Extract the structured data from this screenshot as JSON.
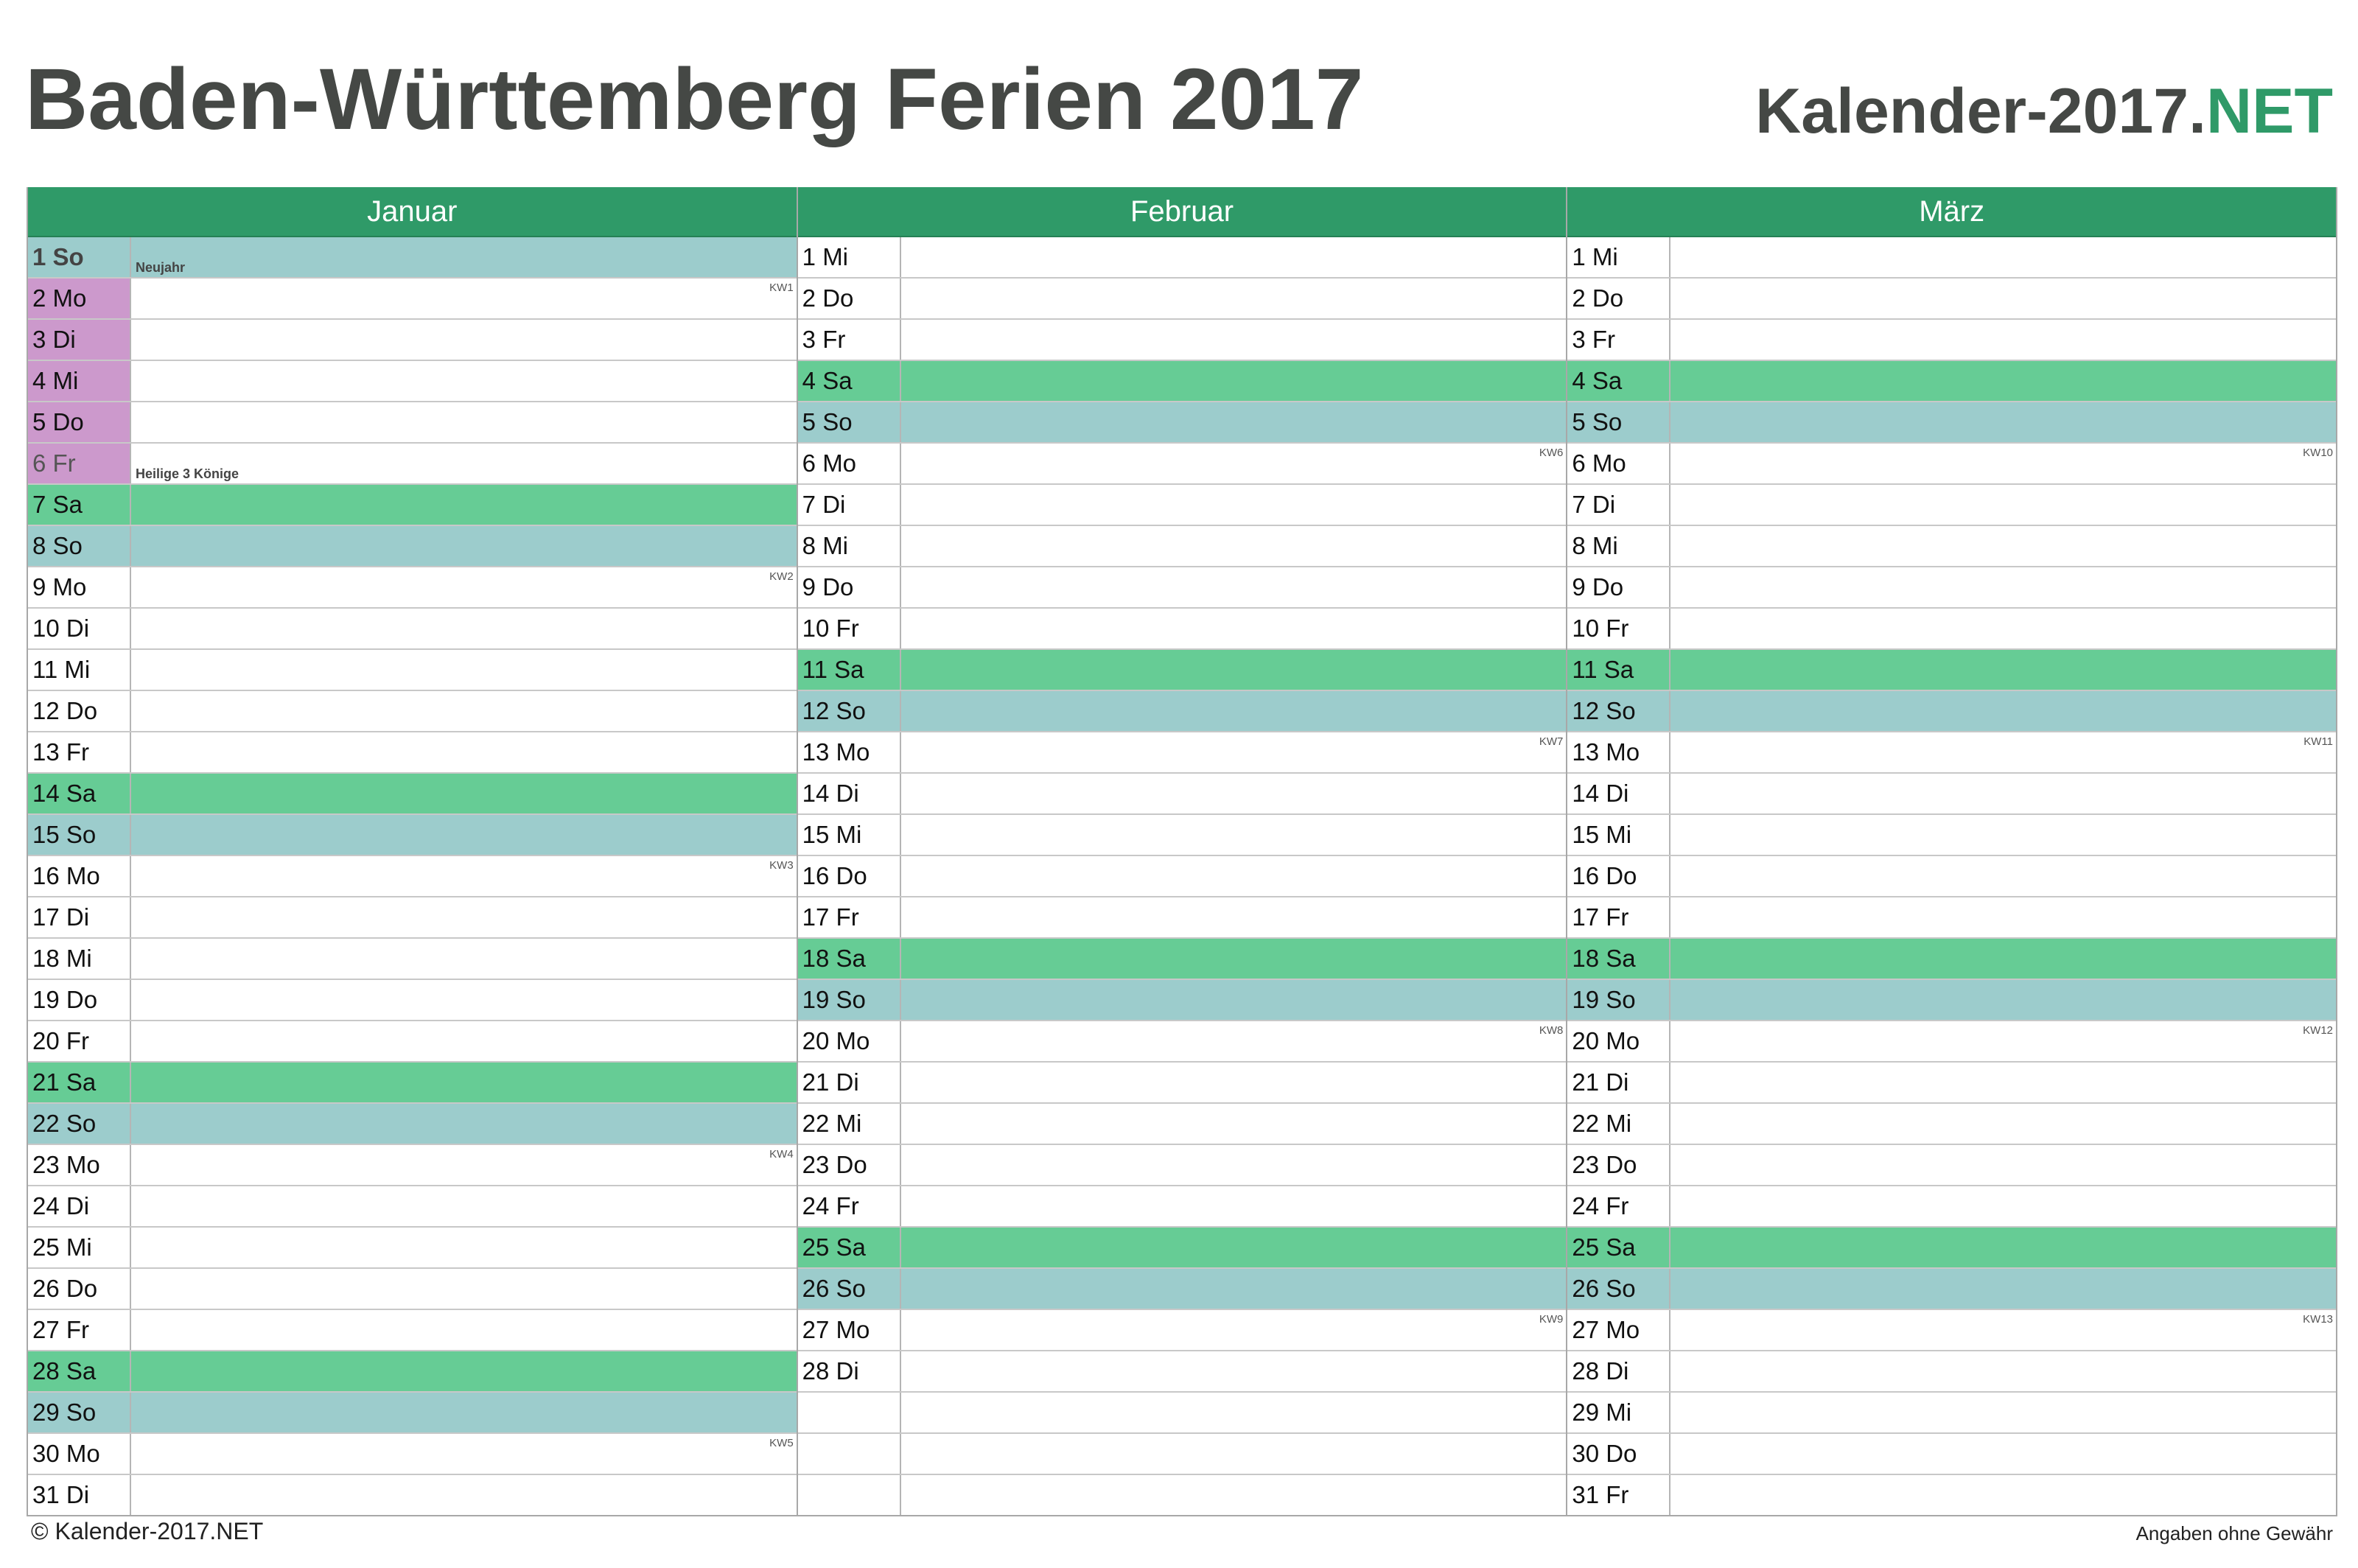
{
  "header": {
    "title": "Baden-Württemberg Ferien 2017",
    "brand_main": "Kalender-2017.",
    "brand_accent": "NET"
  },
  "colors": {
    "header_green": "#2f9a68",
    "saturday": "#66cc95",
    "sunday": "#9ccccc",
    "school_holiday": "#cc99cc",
    "title_gray": "#454845"
  },
  "months": [
    {
      "name": "Januar",
      "days": [
        {
          "label": "1 So",
          "type": "so",
          "note": "Neujahr",
          "pub": true
        },
        {
          "label": "2 Mo",
          "kw": "KW1",
          "holiday": true
        },
        {
          "label": "3 Di",
          "holiday": true
        },
        {
          "label": "4 Mi",
          "holiday": true
        },
        {
          "label": "5 Do",
          "holiday": true
        },
        {
          "label": "6 Fr",
          "holiday": true,
          "note": "Heilige 3 Könige",
          "named": true
        },
        {
          "label": "7 Sa",
          "type": "sa"
        },
        {
          "label": "8 So",
          "type": "so"
        },
        {
          "label": "9 Mo",
          "kw": "KW2"
        },
        {
          "label": "10 Di"
        },
        {
          "label": "11 Mi"
        },
        {
          "label": "12 Do"
        },
        {
          "label": "13 Fr"
        },
        {
          "label": "14 Sa",
          "type": "sa"
        },
        {
          "label": "15 So",
          "type": "so"
        },
        {
          "label": "16 Mo",
          "kw": "KW3"
        },
        {
          "label": "17 Di"
        },
        {
          "label": "18 Mi"
        },
        {
          "label": "19 Do"
        },
        {
          "label": "20 Fr"
        },
        {
          "label": "21 Sa",
          "type": "sa"
        },
        {
          "label": "22 So",
          "type": "so"
        },
        {
          "label": "23 Mo",
          "kw": "KW4"
        },
        {
          "label": "24 Di"
        },
        {
          "label": "25 Mi"
        },
        {
          "label": "26 Do"
        },
        {
          "label": "27 Fr"
        },
        {
          "label": "28 Sa",
          "type": "sa"
        },
        {
          "label": "29 So",
          "type": "so"
        },
        {
          "label": "30 Mo",
          "kw": "KW5"
        },
        {
          "label": "31 Di"
        }
      ]
    },
    {
      "name": "Februar",
      "days": [
        {
          "label": "1 Mi"
        },
        {
          "label": "2 Do"
        },
        {
          "label": "3 Fr"
        },
        {
          "label": "4 Sa",
          "type": "sa"
        },
        {
          "label": "5 So",
          "type": "so"
        },
        {
          "label": "6 Mo",
          "kw": "KW6"
        },
        {
          "label": "7 Di"
        },
        {
          "label": "8 Mi"
        },
        {
          "label": "9 Do"
        },
        {
          "label": "10 Fr"
        },
        {
          "label": "11 Sa",
          "type": "sa"
        },
        {
          "label": "12 So",
          "type": "so"
        },
        {
          "label": "13 Mo",
          "kw": "KW7"
        },
        {
          "label": "14 Di"
        },
        {
          "label": "15 Mi"
        },
        {
          "label": "16 Do"
        },
        {
          "label": "17 Fr"
        },
        {
          "label": "18 Sa",
          "type": "sa"
        },
        {
          "label": "19 So",
          "type": "so"
        },
        {
          "label": "20 Mo",
          "kw": "KW8"
        },
        {
          "label": "21 Di"
        },
        {
          "label": "22 Mi"
        },
        {
          "label": "23 Do"
        },
        {
          "label": "24 Fr"
        },
        {
          "label": "25 Sa",
          "type": "sa"
        },
        {
          "label": "26 So",
          "type": "so"
        },
        {
          "label": "27 Mo",
          "kw": "KW9"
        },
        {
          "label": "28 Di"
        },
        {
          "label": ""
        },
        {
          "label": ""
        },
        {
          "label": ""
        }
      ]
    },
    {
      "name": "März",
      "days": [
        {
          "label": "1 Mi"
        },
        {
          "label": "2 Do"
        },
        {
          "label": "3 Fr"
        },
        {
          "label": "4 Sa",
          "type": "sa"
        },
        {
          "label": "5 So",
          "type": "so"
        },
        {
          "label": "6 Mo",
          "kw": "KW10"
        },
        {
          "label": "7 Di"
        },
        {
          "label": "8 Mi"
        },
        {
          "label": "9 Do"
        },
        {
          "label": "10 Fr"
        },
        {
          "label": "11 Sa",
          "type": "sa"
        },
        {
          "label": "12 So",
          "type": "so"
        },
        {
          "label": "13 Mo",
          "kw": "KW11"
        },
        {
          "label": "14 Di"
        },
        {
          "label": "15 Mi"
        },
        {
          "label": "16 Do"
        },
        {
          "label": "17 Fr"
        },
        {
          "label": "18 Sa",
          "type": "sa"
        },
        {
          "label": "19 So",
          "type": "so"
        },
        {
          "label": "20 Mo",
          "kw": "KW12"
        },
        {
          "label": "21 Di"
        },
        {
          "label": "22 Mi"
        },
        {
          "label": "23 Do"
        },
        {
          "label": "24 Fr"
        },
        {
          "label": "25 Sa",
          "type": "sa"
        },
        {
          "label": "26 So",
          "type": "so"
        },
        {
          "label": "27 Mo",
          "kw": "KW13"
        },
        {
          "label": "28 Di"
        },
        {
          "label": "29 Mi"
        },
        {
          "label": "30 Do"
        },
        {
          "label": "31 Fr"
        }
      ]
    }
  ],
  "footer": {
    "copyright": "© Kalender-2017.NET",
    "disclaimer": "Angaben ohne Gewähr"
  }
}
